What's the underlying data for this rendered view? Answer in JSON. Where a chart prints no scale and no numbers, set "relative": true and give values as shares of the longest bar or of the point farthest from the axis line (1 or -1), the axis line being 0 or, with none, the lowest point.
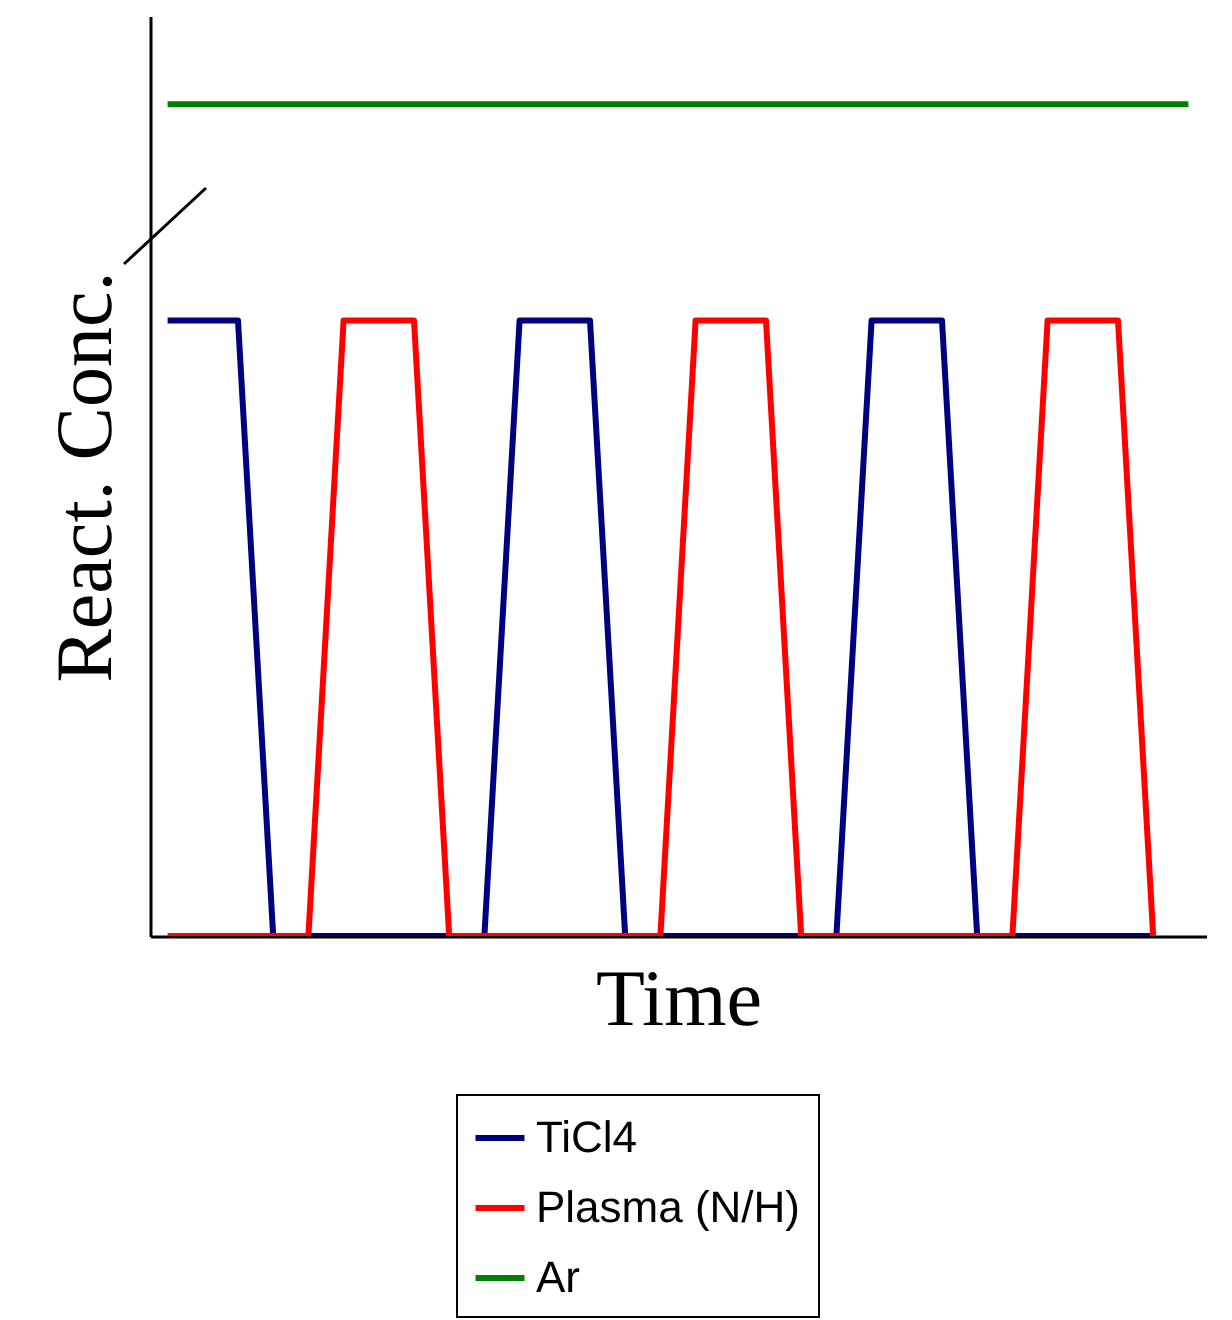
{
  "chart_data": {
    "type": "line",
    "relative": true,
    "xlabel": "Time",
    "ylabel": "React. Conc.",
    "legend": "bottom",
    "categories": [
      null,
      null,
      null,
      null,
      null,
      null,
      null,
      null,
      null,
      null,
      null,
      null,
      null,
      null,
      null,
      null,
      null,
      null,
      null,
      null,
      null,
      null,
      null,
      null,
      null,
      null,
      null,
      null,
      null,
      null
    ],
    "series": [
      {
        "name": "TiCl4",
        "color": "#000080",
        "values": [
          0.74,
          0.74,
          0.74,
          0,
          0,
          0,
          0,
          0,
          0,
          0,
          0.74,
          0.74,
          0.74,
          0,
          0,
          0,
          0,
          0,
          0,
          0,
          0.74,
          0.74,
          0.74,
          0,
          0,
          0,
          0,
          0,
          0,
          null
        ]
      },
      {
        "name": "Plasma (N/H)",
        "color": "#ff0000",
        "values": [
          0,
          0,
          0,
          0,
          0,
          0.74,
          0.74,
          0.74,
          0,
          0,
          0,
          0,
          0,
          0,
          0,
          0.74,
          0.74,
          0.74,
          0,
          0,
          0,
          0,
          0,
          0,
          0,
          0.74,
          0.74,
          0.74,
          0,
          null
        ]
      },
      {
        "name": "Ar",
        "color": "#008000",
        "values": [
          1,
          1,
          1,
          1,
          1,
          1,
          1,
          1,
          1,
          1,
          1,
          1,
          1,
          1,
          1,
          1,
          1,
          1,
          1,
          1,
          1,
          1,
          1,
          1,
          1,
          1,
          1,
          1,
          1,
          1
        ]
      }
    ]
  }
}
